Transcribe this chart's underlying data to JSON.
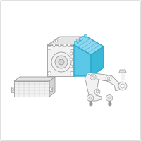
{
  "background_color": "#ffffff",
  "border_color": "#c8c8c8",
  "line_color": "#999999",
  "highlight_color": "#29aacc",
  "highlight_fill": "#5bc8e8",
  "highlight_top": "#8dd8f0",
  "dark_line": "#666666",
  "part_fill": "#f2f2f2",
  "part_mid": "#e4e4e4",
  "part_dark": "#d4d4d4",
  "figsize": [
    2.0,
    2.0
  ],
  "dpi": 100
}
